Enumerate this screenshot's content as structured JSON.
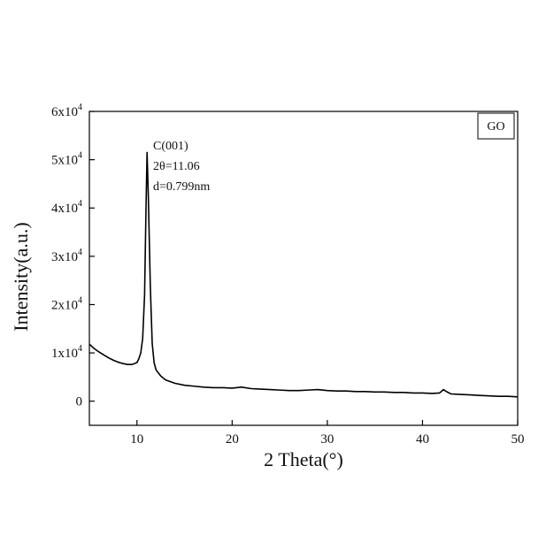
{
  "chart_data": {
    "type": "line",
    "title": "",
    "xlabel": "2 Theta(°)",
    "ylabel": "Intensity(a.u.)",
    "xlim": [
      5,
      50
    ],
    "ylim": [
      -5000,
      60000
    ],
    "grid": false,
    "legend": {
      "placement": "top-right",
      "entries": [
        "GO"
      ]
    },
    "x_ticks": [
      {
        "value": 10,
        "label": "10"
      },
      {
        "value": 20,
        "label": "20"
      },
      {
        "value": 30,
        "label": "30"
      },
      {
        "value": 40,
        "label": "40"
      },
      {
        "value": 50,
        "label": "50"
      }
    ],
    "y_ticks": [
      {
        "value": 0,
        "mantissa": "0",
        "exp": ""
      },
      {
        "value": 10000,
        "mantissa": "1x10",
        "exp": "4"
      },
      {
        "value": 20000,
        "mantissa": "2x10",
        "exp": "4"
      },
      {
        "value": 30000,
        "mantissa": "3x10",
        "exp": "4"
      },
      {
        "value": 40000,
        "mantissa": "4x10",
        "exp": "4"
      },
      {
        "value": 50000,
        "mantissa": "5x10",
        "exp": "4"
      },
      {
        "value": 60000,
        "mantissa": "6x10",
        "exp": "4"
      }
    ],
    "annotations": [
      "C(001)",
      "2θ=11.06",
      "d=0.799nm"
    ],
    "series": [
      {
        "name": "GO",
        "color": "#000000",
        "points": [
          [
            5.0,
            11800
          ],
          [
            5.5,
            10900
          ],
          [
            6.0,
            10200
          ],
          [
            6.5,
            9600
          ],
          [
            7.0,
            9000
          ],
          [
            7.5,
            8500
          ],
          [
            8.0,
            8100
          ],
          [
            8.5,
            7800
          ],
          [
            9.0,
            7600
          ],
          [
            9.5,
            7600
          ],
          [
            10.0,
            8000
          ],
          [
            10.2,
            8800
          ],
          [
            10.4,
            10000
          ],
          [
            10.6,
            13000
          ],
          [
            10.8,
            22000
          ],
          [
            10.95,
            40000
          ],
          [
            11.06,
            51500
          ],
          [
            11.2,
            42000
          ],
          [
            11.4,
            24000
          ],
          [
            11.6,
            12000
          ],
          [
            11.8,
            8000
          ],
          [
            12.0,
            6500
          ],
          [
            12.5,
            5200
          ],
          [
            13.0,
            4400
          ],
          [
            14.0,
            3700
          ],
          [
            15.0,
            3300
          ],
          [
            16.0,
            3100
          ],
          [
            17.0,
            2900
          ],
          [
            18.0,
            2800
          ],
          [
            19.0,
            2800
          ],
          [
            20.0,
            2700
          ],
          [
            21.0,
            2900
          ],
          [
            22.0,
            2600
          ],
          [
            23.0,
            2500
          ],
          [
            24.0,
            2400
          ],
          [
            25.0,
            2300
          ],
          [
            26.0,
            2200
          ],
          [
            27.0,
            2200
          ],
          [
            28.0,
            2300
          ],
          [
            29.0,
            2400
          ],
          [
            30.0,
            2200
          ],
          [
            31.0,
            2100
          ],
          [
            32.0,
            2100
          ],
          [
            33.0,
            2000
          ],
          [
            34.0,
            2000
          ],
          [
            35.0,
            1900
          ],
          [
            36.0,
            1900
          ],
          [
            37.0,
            1800
          ],
          [
            38.0,
            1800
          ],
          [
            39.0,
            1700
          ],
          [
            40.0,
            1700
          ],
          [
            41.0,
            1600
          ],
          [
            41.8,
            1700
          ],
          [
            42.2,
            2400
          ],
          [
            42.5,
            2000
          ],
          [
            43.0,
            1500
          ],
          [
            44.0,
            1400
          ],
          [
            45.0,
            1300
          ],
          [
            46.0,
            1200
          ],
          [
            47.0,
            1100
          ],
          [
            48.0,
            1000
          ],
          [
            49.0,
            1000
          ],
          [
            50.0,
            900
          ]
        ]
      }
    ]
  }
}
